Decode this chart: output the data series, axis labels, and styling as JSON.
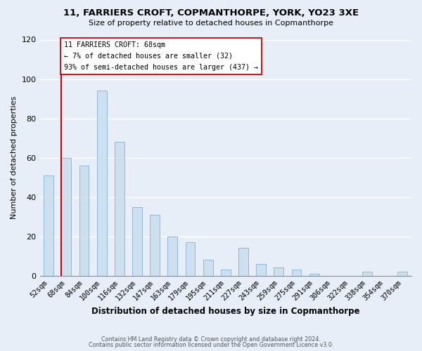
{
  "title1": "11, FARRIERS CROFT, COPMANTHORPE, YORK, YO23 3XE",
  "title2": "Size of property relative to detached houses in Copmanthorpe",
  "xlabel": "Distribution of detached houses by size in Copmanthorpe",
  "ylabel": "Number of detached properties",
  "footer1": "Contains HM Land Registry data © Crown copyright and database right 2024.",
  "footer2": "Contains public sector information licensed under the Open Government Licence v3.0.",
  "bar_labels": [
    "52sqm",
    "68sqm",
    "84sqm",
    "100sqm",
    "116sqm",
    "132sqm",
    "147sqm",
    "163sqm",
    "179sqm",
    "195sqm",
    "211sqm",
    "227sqm",
    "243sqm",
    "259sqm",
    "275sqm",
    "291sqm",
    "306sqm",
    "322sqm",
    "338sqm",
    "354sqm",
    "370sqm"
  ],
  "bar_values": [
    51,
    60,
    56,
    94,
    68,
    35,
    31,
    20,
    17,
    8,
    3,
    14,
    6,
    4,
    3,
    1,
    0,
    0,
    2,
    0,
    2
  ],
  "bar_color": "#cce0f0",
  "bar_edge_color": "#92b8d8",
  "bg_color": "#e8eef8",
  "vline_x_index": 1,
  "vline_color": "#cc0000",
  "annotation_title": "11 FARRIERS CROFT: 68sqm",
  "annotation_line1": "← 7% of detached houses are smaller (32)",
  "annotation_line2": "93% of semi-detached houses are larger (437) →",
  "annotation_box_color": "#ffffff",
  "annotation_box_edge": "#cc0000",
  "ylim": [
    0,
    120
  ],
  "yticks": [
    0,
    20,
    40,
    60,
    80,
    100,
    120
  ]
}
